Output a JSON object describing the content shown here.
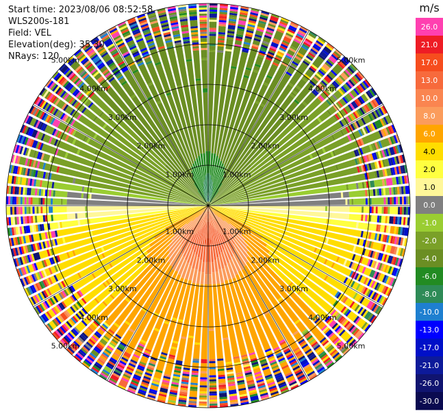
{
  "info": {
    "start_time": "Start time: 2023/08/06 08:52:58",
    "instrument": "WLS200s-181",
    "field": "Field: VEL",
    "elevation": "Elevation(deg): 35.30",
    "nrays": "NRays: 120"
  },
  "chart_data": {
    "type": "heatmap",
    "subtype": "ppi-polar",
    "field": "VEL",
    "nrays": 120,
    "max_range_km": 5.0,
    "gate_km": 0.05,
    "ring_labels": [
      "1.00km",
      "2.00km",
      "3.00km",
      "4.00km",
      "5.00km"
    ],
    "ring_values_km": [
      1,
      2,
      3,
      4,
      5
    ],
    "colorbar": {
      "unit": "m/s",
      "ticks": [
        "26.0",
        "21.0",
        "17.0",
        "13.0",
        "10.0",
        "8.0",
        "6.0",
        "4.0",
        "2.0",
        "1.0",
        "0.0",
        "-1.0",
        "-2.0",
        "-4.0",
        "-6.0",
        "-8.0",
        "-10.0",
        "-13.0",
        "-17.0",
        "-21.0",
        "-26.0",
        "-30.0"
      ],
      "colors": [
        "#ff40b0",
        "#ee1c25",
        "#f64d1e",
        "#f76a3c",
        "#fa8550",
        "#fb9c5c",
        "#ffa500",
        "#ffdd00",
        "#ffff40",
        "#fff799",
        "#808080",
        "#9acd32",
        "#7aa028",
        "#6b8e23",
        "#228b22",
        "#2e8b57",
        "#1e7fd0",
        "#0000ff",
        "#0010c8",
        "#0d1a9a",
        "#101470",
        "#0a0a50"
      ]
    },
    "pattern": {
      "inbound_center_azimuth_deg": 0,
      "inbound_peak_ms": -10.0,
      "outbound_center_azimuth_deg": 180,
      "outbound_peak_ms": 17.0,
      "noisy_beyond_km": 3.8
    }
  }
}
